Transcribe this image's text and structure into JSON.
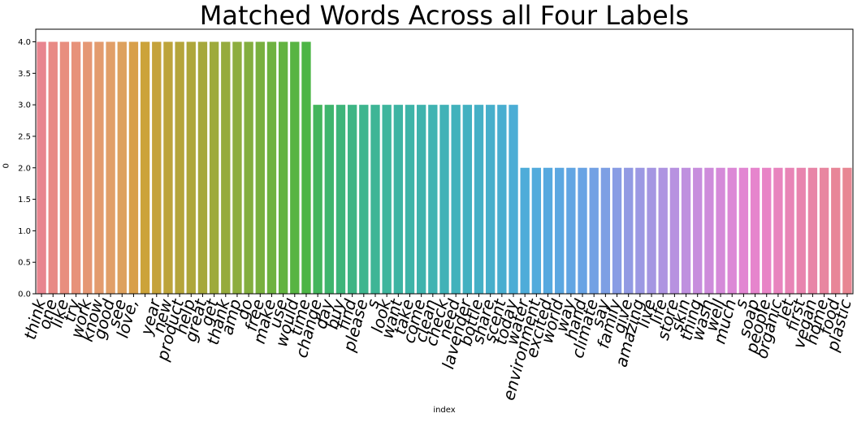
{
  "chart_data": {
    "type": "bar",
    "title": "Matched Words Across all Four Labels",
    "xlabel": "index",
    "ylabel": "0",
    "ylim": [
      0,
      4.2
    ],
    "yticks": [
      "0.0",
      "0.5",
      "1.0",
      "1.5",
      "2.0",
      "2.5",
      "3.0",
      "3.5",
      "4.0"
    ],
    "grid": false,
    "categories": [
      "think",
      "one",
      "like",
      "try",
      "work",
      "know",
      "good",
      "see",
      "love,",
      "",
      "year",
      "new",
      "product",
      "help",
      "great",
      "get",
      "thank",
      "amp",
      "go",
      "free",
      "make",
      "use",
      "would",
      "time",
      "change",
      "day",
      "buy",
      "find",
      "please",
      "s",
      "look",
      "want",
      "take",
      "come",
      "clean",
      "check",
      "need",
      "lavender",
      "bottle",
      "share",
      "scent",
      "today",
      "water",
      "environment",
      "excited",
      "world",
      "way",
      "hand",
      "climate",
      "say",
      "family",
      "give",
      "amazing",
      "live",
      "life",
      "store",
      "skin",
      "thing",
      "wash",
      "well",
      "much",
      "s",
      "soap",
      "people",
      "organic",
      "let",
      "first",
      "vegan",
      "home",
      "food",
      "plastic"
    ],
    "values": [
      4,
      4,
      4,
      4,
      4,
      4,
      4,
      4,
      4,
      4,
      4,
      4,
      4,
      4,
      4,
      4,
      4,
      4,
      4,
      4,
      4,
      4,
      4,
      4,
      3,
      3,
      3,
      3,
      3,
      3,
      3,
      3,
      3,
      3,
      3,
      3,
      3,
      3,
      3,
      3,
      3,
      3,
      2,
      2,
      2,
      2,
      2,
      2,
      2,
      2,
      2,
      2,
      2,
      2,
      2,
      2,
      2,
      2,
      2,
      2,
      2,
      2,
      2,
      2,
      2,
      2,
      2,
      2,
      2,
      2,
      2
    ],
    "colors": [
      "#e8858f",
      "#e88a85",
      "#e88e7f",
      "#e7927a",
      "#e59774",
      "#e39b6e",
      "#e19f68",
      "#dda15e",
      "#d89f4a",
      "#cca33a",
      "#c5a23a",
      "#bda43b",
      "#b5a53b",
      "#aea73b",
      "#a6a83c",
      "#9eaa3c",
      "#96ab3d",
      "#8dad3e",
      "#83ae3f",
      "#79b03f",
      "#6eb240",
      "#63b341",
      "#58b443",
      "#4cb545",
      "#43b55c",
      "#3fb56d",
      "#3eb57a",
      "#3eb585",
      "#3eb58e",
      "#3eb596",
      "#3eb59d",
      "#3eb4a3",
      "#3eb4a8",
      "#3fb3ad",
      "#40b3b2",
      "#41b2b7",
      "#42b2bc",
      "#43b1c1",
      "#45b0c6",
      "#47afcb",
      "#49aed0",
      "#4badd5",
      "#4eacd9",
      "#52abdc",
      "#56a9df",
      "#5ba7e1",
      "#61a5e3",
      "#68a3e4",
      "#72a1e4",
      "#7d9fe4",
      "#889ce4",
      "#929ae3",
      "#9c98e3",
      "#a596e2",
      "#ae94e1",
      "#b792e0",
      "#bf90df",
      "#c78edd",
      "#ce8cdb",
      "#d58ad9",
      "#dc88d6",
      "#e286d2",
      "#e685cd",
      "#e884c6",
      "#e884be",
      "#e884b6",
      "#e884ae",
      "#e885a7",
      "#e886a0",
      "#e88698",
      "#e88793"
    ]
  }
}
